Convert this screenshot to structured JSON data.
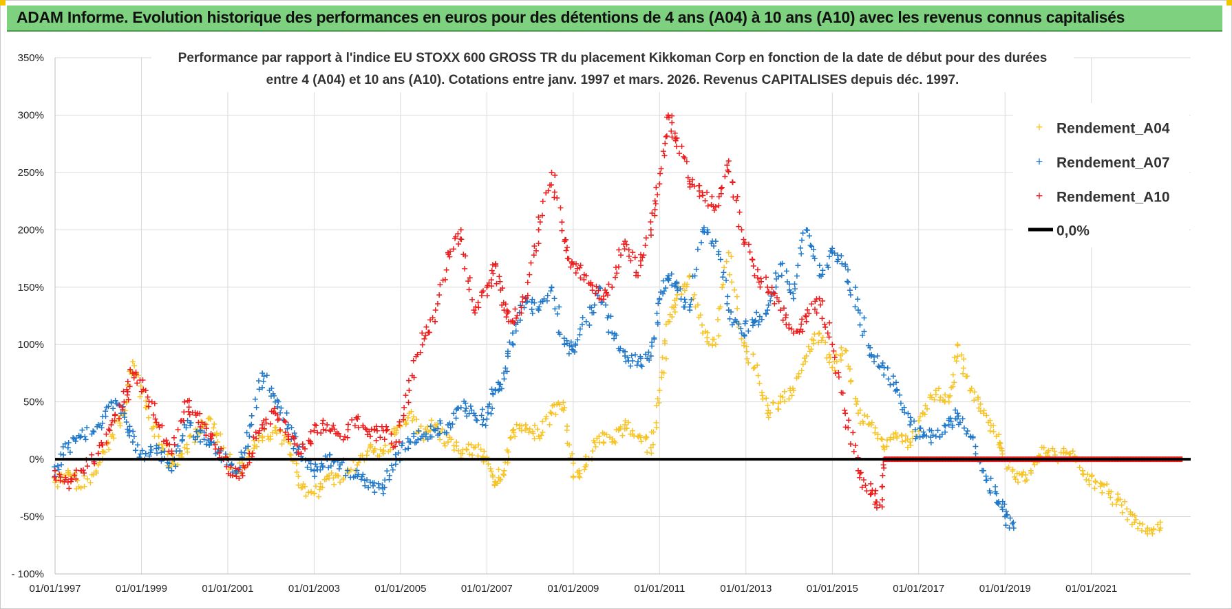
{
  "header": {
    "banner_title": "ADAM Informe. Evolution historique des performances en euros pour des détentions de 4 ans (A04) à 10 ans (A10) avec les revenus connus capitalisés"
  },
  "colors": {
    "A04": "#f7c325",
    "A07": "#1f77c9",
    "A10": "#ee1b1b",
    "zero": "#000000",
    "banner": "#7ed17e",
    "grid": "#d9d9d9"
  },
  "chart_data": {
    "type": "scatter",
    "title_line1": "Performance par rapport à l'indice EU STOXX 600 GROSS TR  du placement Kikkoman Corp en fonction de la date de début pour des durées",
    "title_line2": "entre 4 (A04) et 10 ans (A10).  Cotations entre janv. 1997 et mars. 2026. Revenus CAPITALISES  depuis déc. 1997.",
    "xlabel": "",
    "ylabel": "",
    "x_range": [
      1997.0,
      2023.3
    ],
    "ylim": [
      -100,
      350
    ],
    "y_ticks": [
      -100,
      -50,
      0,
      50,
      100,
      150,
      200,
      250,
      300,
      350
    ],
    "y_tick_labels": [
      "- 100%",
      "-50%",
      "0%",
      "50%",
      "100%",
      "150%",
      "200%",
      "250%",
      "300%",
      "350%"
    ],
    "x_ticks": [
      1997,
      1999,
      2001,
      2003,
      2005,
      2007,
      2009,
      2011,
      2013,
      2015,
      2017,
      2019,
      2021
    ],
    "x_tick_labels": [
      "01/01/1997",
      "01/01/1999",
      "01/01/2001",
      "01/01/2003",
      "01/01/2005",
      "01/01/2007",
      "01/01/2009",
      "01/01/2011",
      "01/01/2013",
      "01/01/2015",
      "01/01/2017",
      "01/01/2019",
      "01/01/2021"
    ],
    "legend_position": "top-right",
    "series": [
      {
        "name": "Rendement_A04",
        "key": "A04",
        "x": [
          1997.0,
          1997.3,
          1997.6,
          1998.0,
          1998.3,
          1998.6,
          1998.8,
          1999.1,
          1999.4,
          1999.7,
          2000.0,
          2000.3,
          2000.6,
          2000.9,
          2001.2,
          2001.5,
          2001.8,
          2002.1,
          2002.4,
          2002.7,
          2003.0,
          2003.3,
          2003.6,
          2004.0,
          2004.3,
          2004.6,
          2004.9,
          2005.2,
          2005.5,
          2005.8,
          2006.1,
          2006.4,
          2006.7,
          2007.0,
          2007.2,
          2007.4,
          2007.6,
          2007.9,
          2008.2,
          2008.5,
          2008.8,
          2009.0,
          2009.3,
          2009.6,
          2009.9,
          2010.2,
          2010.5,
          2010.8,
          2011.0,
          2011.2,
          2011.4,
          2011.7,
          2012.0,
          2012.3,
          2012.6,
          2012.9,
          2013.2,
          2013.5,
          2013.8,
          2014.1,
          2014.4,
          2014.7,
          2015.0,
          2015.3,
          2015.6,
          2015.9,
          2016.2,
          2016.5,
          2016.8,
          2017.1,
          2017.4,
          2017.7,
          2017.9,
          2018.2,
          2018.5,
          2018.8,
          2019.0,
          2019.3,
          2019.6,
          2019.9,
          2020.2,
          2020.5,
          2020.8,
          2021.1,
          2021.4,
          2021.7,
          2022.0,
          2022.3,
          2022.6
        ],
        "y": [
          -20,
          -10,
          -25,
          -5,
          20,
          40,
          85,
          45,
          20,
          -5,
          10,
          25,
          35,
          10,
          -15,
          5,
          20,
          25,
          15,
          -25,
          -30,
          -15,
          -20,
          -5,
          10,
          5,
          25,
          40,
          20,
          30,
          15,
          5,
          10,
          0,
          -20,
          -10,
          25,
          30,
          20,
          40,
          45,
          -15,
          -5,
          20,
          15,
          30,
          20,
          10,
          60,
          120,
          140,
          160,
          110,
          100,
          180,
          105,
          80,
          40,
          50,
          60,
          90,
          110,
          80,
          95,
          40,
          30,
          10,
          20,
          15,
          40,
          60,
          50,
          100,
          60,
          40,
          20,
          0,
          -20,
          -10,
          10,
          0,
          5,
          -10,
          -20,
          -30,
          -40,
          -55,
          -60,
          -60
        ]
      },
      {
        "name": "Rendement_A07",
        "key": "A07",
        "x": [
          1997.0,
          1997.3,
          1997.6,
          1998.0,
          1998.3,
          1998.6,
          1998.8,
          1999.1,
          1999.4,
          1999.7,
          2000.0,
          2000.3,
          2000.6,
          2000.9,
          2001.2,
          2001.5,
          2001.8,
          2002.1,
          2002.4,
          2002.7,
          2003.0,
          2003.3,
          2003.6,
          2004.0,
          2004.3,
          2004.6,
          2004.9,
          2005.2,
          2005.5,
          2005.8,
          2006.1,
          2006.4,
          2006.7,
          2007.0,
          2007.2,
          2007.4,
          2007.6,
          2007.9,
          2008.2,
          2008.5,
          2008.8,
          2009.0,
          2009.3,
          2009.6,
          2009.9,
          2010.2,
          2010.5,
          2010.8,
          2011.0,
          2011.2,
          2011.4,
          2011.7,
          2012.0,
          2012.3,
          2012.6,
          2012.9,
          2013.2,
          2013.5,
          2013.8,
          2014.1,
          2014.4,
          2014.7,
          2015.0,
          2015.3,
          2015.6,
          2015.9,
          2016.2,
          2016.5,
          2016.8,
          2017.1,
          2017.4,
          2017.7,
          2017.9,
          2018.2,
          2018.5,
          2018.8,
          2019.0,
          2019.2
        ],
        "y": [
          -15,
          10,
          20,
          30,
          50,
          40,
          15,
          5,
          10,
          -10,
          30,
          20,
          15,
          0,
          -10,
          20,
          75,
          50,
          30,
          0,
          -10,
          0,
          -5,
          -15,
          -20,
          -30,
          0,
          15,
          20,
          25,
          30,
          45,
          40,
          35,
          60,
          70,
          110,
          140,
          130,
          150,
          100,
          95,
          120,
          150,
          110,
          90,
          85,
          90,
          140,
          160,
          150,
          130,
          200,
          190,
          130,
          110,
          120,
          130,
          170,
          140,
          200,
          160,
          180,
          170,
          130,
          90,
          80,
          60,
          30,
          20,
          20,
          30,
          40,
          20,
          -10,
          -30,
          -50,
          -60
        ]
      },
      {
        "name": "Rendement_A10",
        "key": "A10",
        "x": [
          1997.0,
          1997.3,
          1997.6,
          1998.0,
          1998.3,
          1998.6,
          1998.8,
          1999.1,
          1999.4,
          1999.7,
          2000.0,
          2000.3,
          2000.6,
          2000.9,
          2001.2,
          2001.5,
          2001.8,
          2002.1,
          2002.4,
          2002.7,
          2003.0,
          2003.3,
          2003.6,
          2004.0,
          2004.3,
          2004.6,
          2004.9,
          2005.2,
          2005.5,
          2005.8,
          2006.1,
          2006.4,
          2006.7,
          2007.0,
          2007.2,
          2007.4,
          2007.6,
          2007.9,
          2008.2,
          2008.5,
          2008.8,
          2009.0,
          2009.3,
          2009.6,
          2009.9,
          2010.2,
          2010.5,
          2010.8,
          2011.0,
          2011.2,
          2011.4,
          2011.7,
          2012.0,
          2012.3,
          2012.6,
          2012.9,
          2013.2,
          2013.5,
          2013.8,
          2014.1,
          2014.4,
          2014.7,
          2015.0,
          2015.3,
          2015.6,
          2015.9,
          2016.1,
          2016.2,
          2016.5,
          2016.8,
          2017.1,
          2017.4,
          2017.7,
          2018.0,
          2018.3,
          2018.6,
          2018.9,
          2019.2,
          2019.5,
          2019.8,
          2020.1,
          2020.4,
          2020.7,
          2021.0,
          2021.3,
          2021.6,
          2021.9,
          2022.2,
          2022.5,
          2022.8,
          2023.1
        ],
        "y": [
          -10,
          -20,
          -10,
          5,
          30,
          50,
          75,
          60,
          30,
          5,
          50,
          40,
          20,
          0,
          -15,
          5,
          30,
          40,
          20,
          5,
          25,
          30,
          20,
          35,
          20,
          25,
          15,
          60,
          110,
          120,
          180,
          200,
          130,
          150,
          170,
          130,
          120,
          140,
          200,
          250,
          190,
          170,
          160,
          140,
          150,
          190,
          160,
          200,
          240,
          300,
          280,
          240,
          230,
          220,
          260,
          200,
          160,
          150,
          130,
          110,
          120,
          140,
          100,
          40,
          -10,
          -30,
          -40,
          0,
          0,
          0,
          0,
          0,
          0,
          0,
          0,
          0,
          0,
          0,
          0,
          0,
          0,
          0,
          0,
          0,
          0,
          0,
          0,
          0,
          0,
          0,
          0
        ]
      }
    ],
    "zero_line_label": "0,0%"
  }
}
